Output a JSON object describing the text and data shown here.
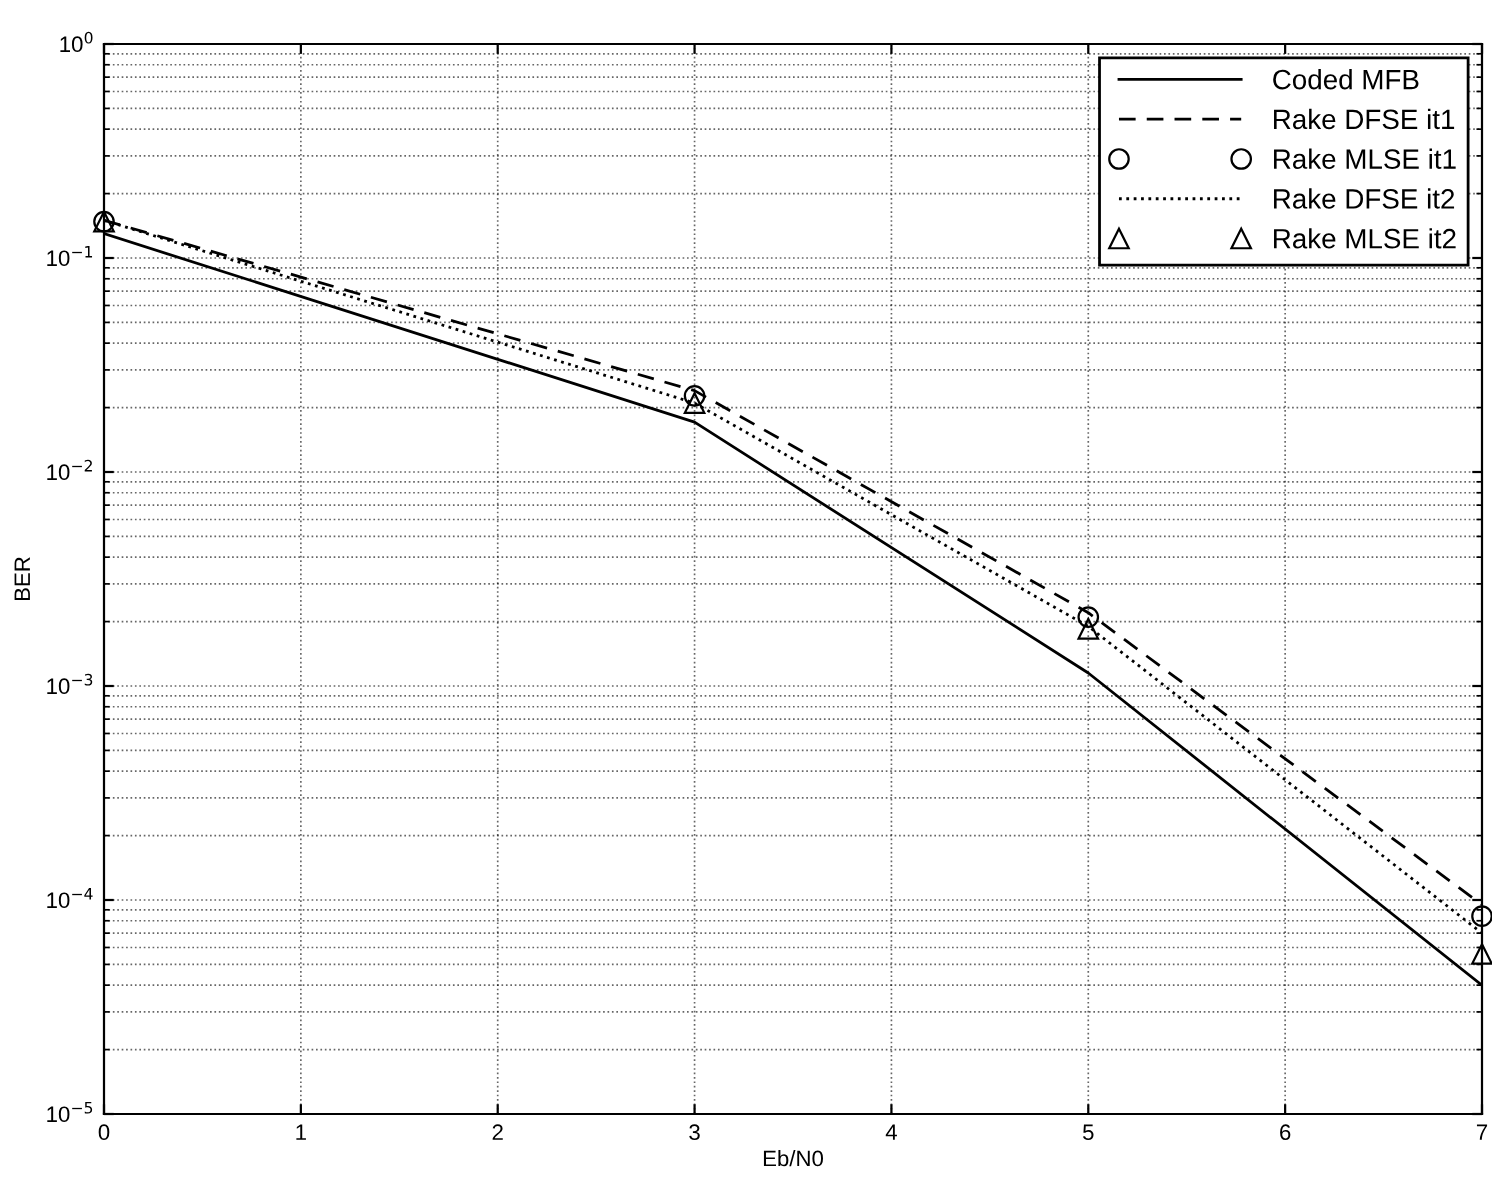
{
  "chart_data": {
    "type": "line",
    "xlabel": "Eb/N0",
    "ylabel": "BER",
    "log": "y",
    "grid": true,
    "legend": "top right",
    "x": [
      0,
      3,
      5,
      7
    ],
    "xlim": [
      0,
      7
    ],
    "xticks": [
      0,
      1,
      2,
      3,
      4,
      5,
      6,
      7
    ],
    "ylim": [
      1e-05,
      1
    ],
    "yticks": [
      {
        "value": 1e-05,
        "label": "10$^{−5}$"
      },
      {
        "value": 0.0001,
        "label": "10$^{−4}$"
      },
      {
        "value": 0.001,
        "label": "10$^{−3}$"
      },
      {
        "value": 0.01,
        "label": "10$^{−2}$"
      },
      {
        "value": 0.1,
        "label": "10$^{−1}$"
      },
      {
        "value": 1,
        "label": "10$^{0}$"
      }
    ],
    "series": [
      {
        "name": "Coded MFB",
        "color": "#000000",
        "line_style": "solid",
        "marker": "none",
        "values": [
          0.13,
          0.0171,
          0.00115,
          4e-05
        ]
      },
      {
        "name": "Rake DFSE it1",
        "color": "#000000",
        "line_style": "dashed",
        "marker": "none",
        "values": [
          0.15,
          0.024,
          0.0022,
          9.5e-05
        ]
      },
      {
        "name": "Rake MLSE it1",
        "color": "#000000",
        "type": "scatter",
        "marker": "circle",
        "values": [
          0.148,
          0.0227,
          0.0021,
          8.4e-05
        ]
      },
      {
        "name": "Rake DFSE it2",
        "color": "#000000",
        "line_style": "dotted",
        "marker": "none",
        "values": [
          0.15,
          0.021,
          0.0019,
          7e-05
        ]
      },
      {
        "name": "Rake MLSE it2",
        "color": "#000000",
        "type": "scatter",
        "marker": "triangle",
        "values": [
          0.148,
          0.021,
          0.00185,
          5.6e-05
        ]
      }
    ]
  }
}
